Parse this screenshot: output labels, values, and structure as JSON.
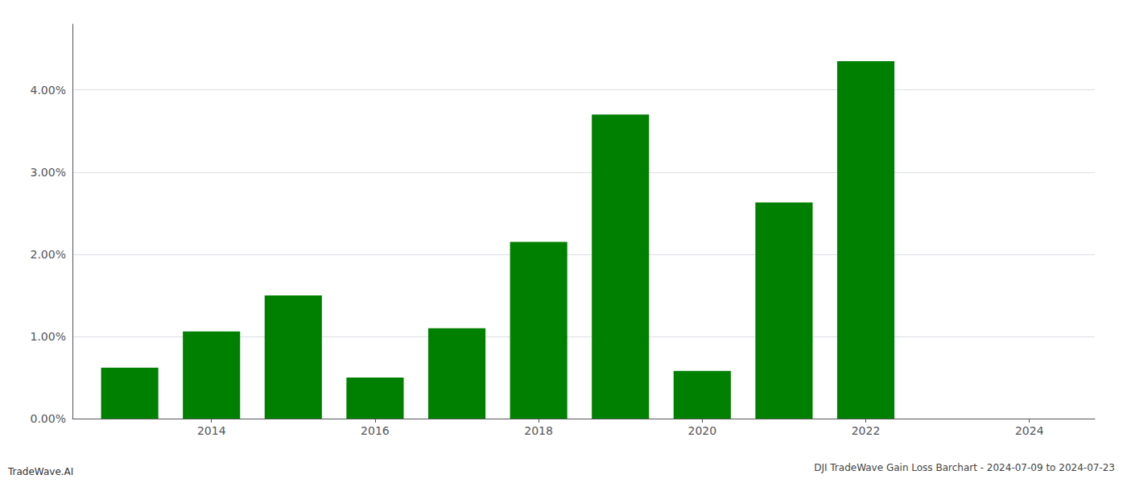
{
  "chart_data": {
    "type": "bar",
    "title": "DJI TradeWave Gain Loss Barchart - 2024-07-09 to 2024-07-23",
    "annotations": [
      "TradeWave.AI"
    ],
    "x": [
      2013,
      2014,
      2015,
      2016,
      2017,
      2018,
      2019,
      2020,
      2021,
      2022
    ],
    "values": [
      0.0062,
      0.0106,
      0.015,
      0.005,
      0.011,
      0.0215,
      0.037,
      0.0058,
      0.0263,
      0.0435
    ],
    "color": "#008000",
    "xlim": [
      2012.3,
      2024.8
    ],
    "xticks": [
      2014,
      2016,
      2018,
      2020,
      2022,
      2024
    ],
    "ylim": [
      0.0,
      0.048
    ],
    "yticks": [
      {
        "value": 0.0,
        "label": "0.00%"
      },
      {
        "value": 0.01,
        "label": "1.00%"
      },
      {
        "value": 0.02,
        "label": "2.00%"
      },
      {
        "value": 0.03,
        "label": "3.00%"
      },
      {
        "value": 0.04,
        "label": "4.00%"
      }
    ],
    "grid": true
  }
}
